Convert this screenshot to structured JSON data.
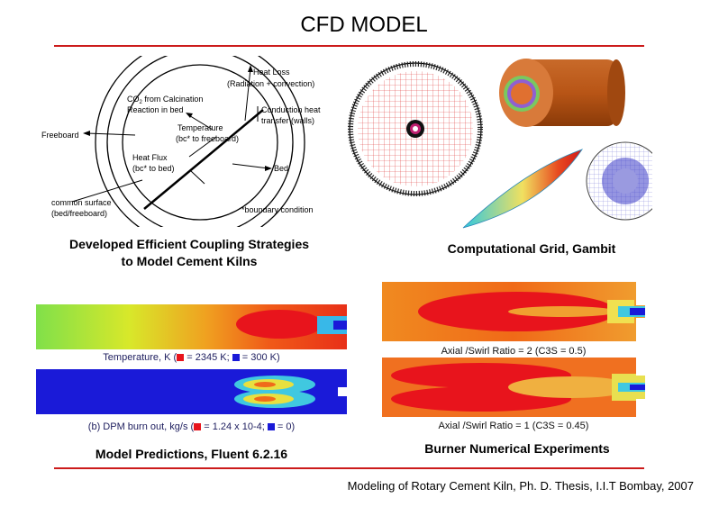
{
  "slide": {
    "title": "CFD MODEL"
  },
  "diagram": {
    "labels": {
      "heat_loss_1": "Heat Loss",
      "heat_loss_2": "(Radiation + convection)",
      "co2_1": "CO",
      "co2_sub": "2",
      "co2_1b": " from Calcination",
      "co2_2": "Reaction in bed",
      "conduction_1": "Conduction heat",
      "conduction_2": "transfer (walls)",
      "temperature_1": "Temperature",
      "temperature_2": "(bc* to freeboard)",
      "freeboard": "Freeboard",
      "heat_flux_1": "Heat Flux",
      "heat_flux_2": "(bc* to bed)",
      "bed": "Bed",
      "common_1": "common surface",
      "common_2": "(bed/freeboard)",
      "boundary": "*boundary condition"
    },
    "caption_1": "Developed Efficient Coupling Strategies",
    "caption_2": "to Model Cement Kilns"
  },
  "grid": {
    "caption": "Computational Grid, Gambit"
  },
  "predictions": {
    "temperature_label_pre": "Temperature, K (",
    "temperature_label_red": " = 2345 K; ",
    "temperature_label_blue": " = 300 K)",
    "dpm_label_pre": "(b) DPM burn out, kg/s (",
    "dpm_label_red": " = 1.24 x 10-4; ",
    "dpm_label_blue": " = 0)",
    "caption": "Model Predictions, Fluent 6.2.16",
    "colors": {
      "red": "#e8141c",
      "blue": "#1a1ad8"
    }
  },
  "burner": {
    "plot1_label": "Axial /Swirl Ratio = 2 (C3S = 0.5)",
    "plot2_label": "Axial /Swirl Ratio = 1 (C3S = 0.45)",
    "caption": "Burner Numerical Experiments"
  },
  "footer": {
    "text": "Modeling of Rotary Cement Kiln, Ph. D. Thesis, I.I.T Bombay, 2007"
  }
}
